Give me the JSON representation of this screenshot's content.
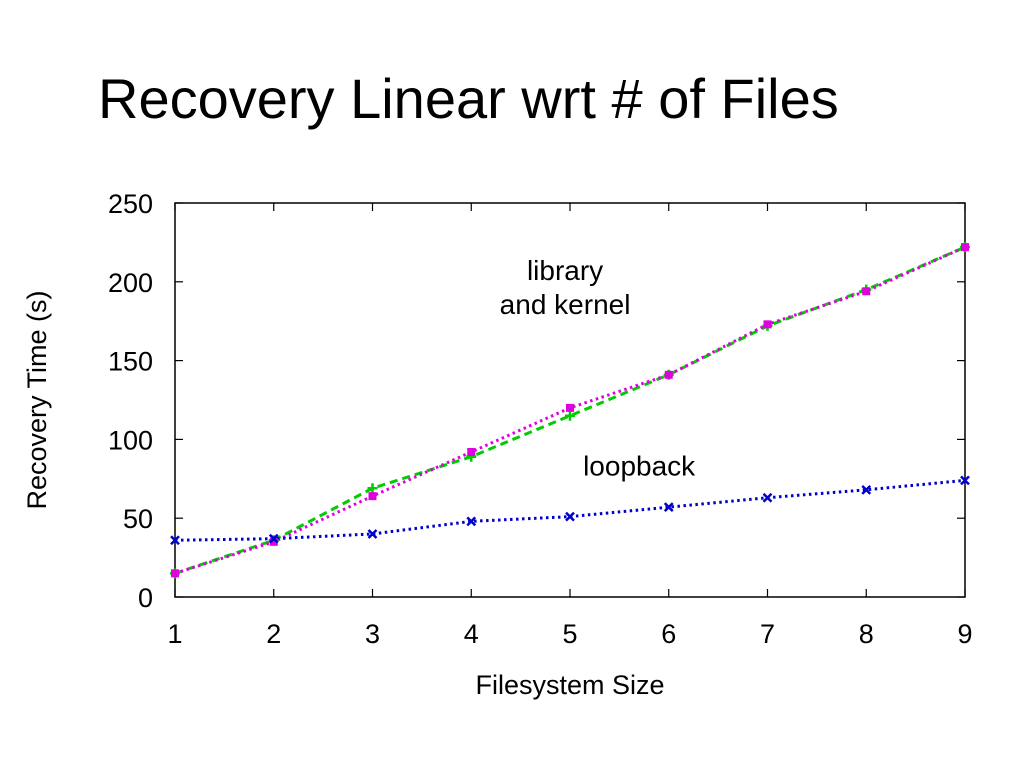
{
  "slide": {
    "title": "Recovery Linear wrt # of Files"
  },
  "chart_data": {
    "type": "line",
    "xlabel": "Filesystem Size",
    "ylabel": "Recovery Time (s)",
    "xlim": [
      1,
      9
    ],
    "ylim": [
      0,
      250
    ],
    "x_ticks": [
      1,
      2,
      3,
      4,
      5,
      6,
      7,
      8,
      9
    ],
    "y_ticks": [
      0,
      50,
      100,
      150,
      200,
      250
    ],
    "grid": false,
    "x": [
      1,
      2,
      3,
      4,
      5,
      6,
      7,
      8,
      9
    ],
    "series": [
      {
        "color": "#00cc00",
        "style": "dashed",
        "marker": "+",
        "values": [
          15,
          36,
          69,
          89,
          115,
          141,
          172,
          195,
          222
        ]
      },
      {
        "color": "#e000e0",
        "style": "dotted",
        "marker": "square",
        "values": [
          15,
          35,
          64,
          92,
          120,
          141,
          173,
          194,
          222
        ]
      },
      {
        "color": "#0000cc",
        "style": "dotted",
        "marker": "x",
        "values": [
          36,
          37,
          40,
          48,
          51,
          57,
          63,
          68,
          74
        ]
      }
    ],
    "annotations": [
      {
        "lines": [
          "library",
          "and kernel"
        ],
        "x": 4.95,
        "y": 201
      },
      {
        "lines": [
          "loopback"
        ],
        "x": 5.7,
        "y": 77
      }
    ]
  }
}
